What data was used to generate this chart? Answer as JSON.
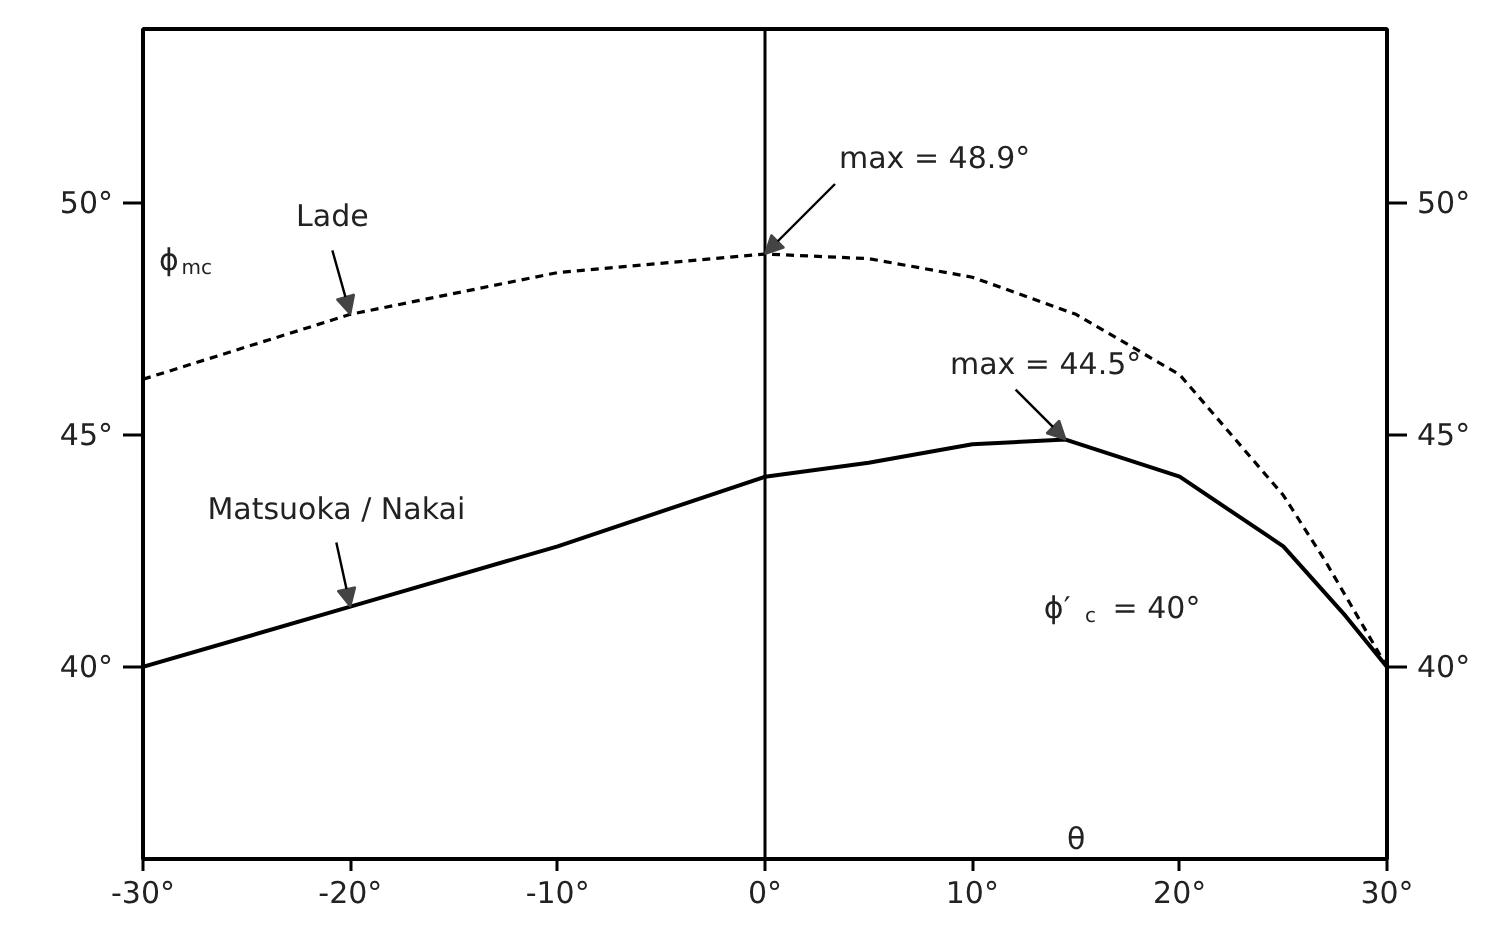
{
  "chart_data": {
    "type": "line",
    "xlabel": "θ",
    "ylabel": "ϕ$_{mc}$",
    "xlim": [
      -30,
      30
    ],
    "ylim": [
      35.86,
      53.75
    ],
    "y2lim": [
      35.86,
      53.75
    ],
    "xticks": [
      {
        "value": -30,
        "label": "-30°"
      },
      {
        "value": -20,
        "label": "-20°"
      },
      {
        "value": -10,
        "label": "-10°"
      },
      {
        "value": 0,
        "label": "0°"
      },
      {
        "value": 10,
        "label": "10°"
      },
      {
        "value": 20,
        "label": "20°"
      },
      {
        "value": 30,
        "label": "30°"
      }
    ],
    "yticks": [
      {
        "value": 40,
        "label": "40°"
      },
      {
        "value": 45,
        "label": "45°"
      },
      {
        "value": 50,
        "label": "50°"
      }
    ],
    "y2ticks": [
      {
        "value": 40,
        "label": "40°"
      },
      {
        "value": 45,
        "label": "45°"
      },
      {
        "value": 50,
        "label": "50°"
      }
    ],
    "series": [
      {
        "name": "Lade",
        "color": "#000000",
        "line_style": "dashed",
        "x": [
          -30,
          -20,
          -10,
          0,
          5,
          10,
          15,
          20,
          25,
          27,
          30
        ],
        "values": [
          46.2,
          47.6,
          48.5,
          48.9,
          48.8,
          48.4,
          47.6,
          46.3,
          43.7,
          42.3,
          40.0
        ]
      },
      {
        "name": "Matsuoka / Nakai",
        "color": "#000000",
        "line_style": "solid",
        "x": [
          -30,
          -20,
          -10,
          0,
          5,
          10,
          14.5,
          20,
          25,
          28,
          30
        ],
        "values": [
          40.0,
          41.3,
          42.6,
          44.1,
          44.4,
          44.8,
          44.9,
          44.1,
          42.6,
          41.1,
          40.0
        ]
      }
    ],
    "ref_lines": [
      {
        "axis": "x",
        "value": 0,
        "color": "#000000"
      }
    ],
    "annotations": [
      {
        "text": "max = 48.9°",
        "x": 0,
        "y": 48.9
      },
      {
        "text": "max = 44.5°",
        "x": 14.5,
        "y": 44.9
      },
      "ϕ′$_{c}$ = 40°"
    ],
    "grid": false
  }
}
